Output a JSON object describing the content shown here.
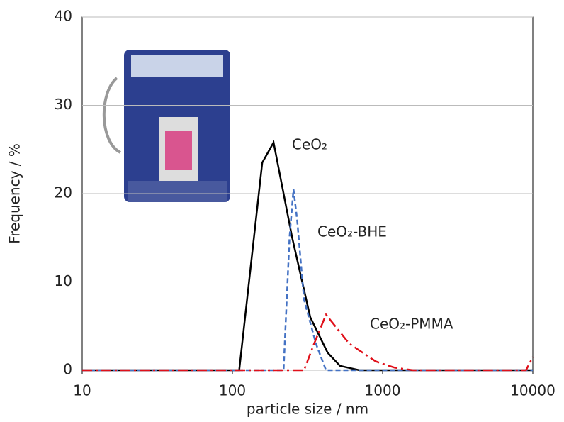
{
  "chart_data": {
    "type": "line",
    "xlabel": "particle size / nm",
    "ylabel": "Frequency / %",
    "xscale": "log",
    "xlim": [
      10,
      10000
    ],
    "xticks": [
      10,
      100,
      1000,
      10000
    ],
    "ylim": [
      0,
      40
    ],
    "yticks": [
      0,
      10,
      20,
      30,
      40
    ],
    "grid": true,
    "series": [
      {
        "name": "CeO₂",
        "color": "#000000",
        "line_style": "solid",
        "x": [
          10,
          111,
          158,
          188,
          250,
          330,
          430,
          520,
          700,
          10000
        ],
        "values": [
          0,
          0,
          23.5,
          25.8,
          15,
          6,
          2,
          0.5,
          0,
          0
        ]
      },
      {
        "name": "CeO₂-BHE",
        "color": "#4472c4",
        "line_style": "dashed",
        "x": [
          10,
          219,
          240,
          255,
          270,
          300,
          360,
          420,
          10000
        ],
        "values": [
          0,
          0,
          15,
          20.5,
          17,
          8,
          3,
          0,
          0
        ]
      },
      {
        "name": "CeO₂-PMMA",
        "color": "#e0101a",
        "line_style": "dashdot",
        "x": [
          10,
          300,
          350,
          420,
          600,
          900,
          1200,
          1600,
          2000,
          9000,
          10000
        ],
        "values": [
          0,
          0,
          3,
          6.3,
          3,
          1,
          0.3,
          0,
          0,
          0,
          1.5
        ]
      }
    ]
  }
}
